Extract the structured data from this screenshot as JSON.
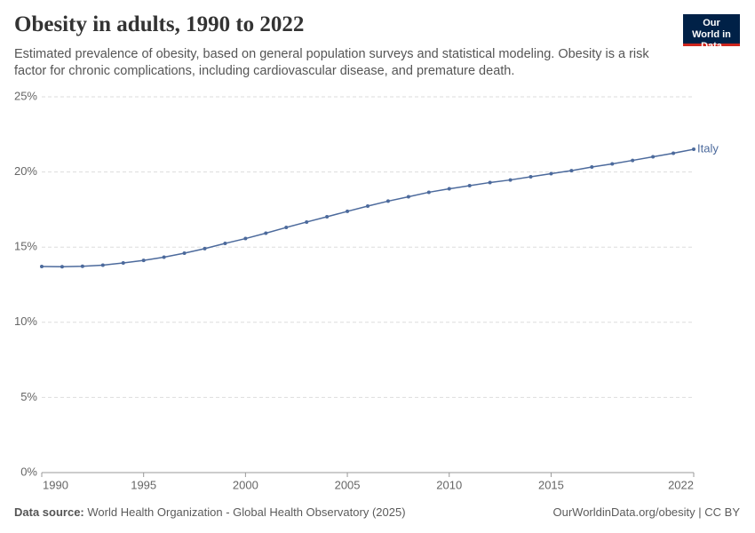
{
  "chart_data": {
    "type": "line",
    "title": "Obesity in adults, 1990 to 2022",
    "subtitle": "Estimated prevalence of obesity, based on general population surveys and statistical modeling. Obesity is a risk factor for chronic complications, including cardiovascular disease, and premature death.",
    "logo": "Our World in Data",
    "source_label": "Data source:",
    "source": "World Health Organization - Global Health Observatory (2025)",
    "footer_right": "OurWorldinData.org/obesity | CC BY",
    "x": [
      1990,
      1991,
      1992,
      1993,
      1994,
      1995,
      1996,
      1997,
      1998,
      1999,
      2000,
      2001,
      2002,
      2003,
      2004,
      2005,
      2006,
      2007,
      2008,
      2009,
      2010,
      2011,
      2012,
      2013,
      2014,
      2015,
      2016,
      2017,
      2018,
      2019,
      2020,
      2021,
      2022
    ],
    "series": [
      {
        "name": "Italy",
        "color": "#4c6a9c",
        "values": [
          13.71,
          13.7,
          13.73,
          13.8,
          13.95,
          14.12,
          14.33,
          14.6,
          14.9,
          15.25,
          15.57,
          15.93,
          16.31,
          16.67,
          17.02,
          17.38,
          17.73,
          18.06,
          18.35,
          18.65,
          18.88,
          19.09,
          19.3,
          19.47,
          19.68,
          19.89,
          20.09,
          20.33,
          20.54,
          20.77,
          21.01,
          21.25,
          21.51
        ]
      }
    ],
    "xlim": [
      1990,
      2022
    ],
    "xticks": [
      1990,
      1995,
      2000,
      2005,
      2010,
      2015,
      2022
    ],
    "ylim": [
      0,
      25
    ],
    "yticks": [
      {
        "value": 0,
        "label": "0%"
      },
      {
        "value": 5,
        "label": "5%"
      },
      {
        "value": 10,
        "label": "10%"
      },
      {
        "value": 15,
        "label": "15%"
      },
      {
        "value": 20,
        "label": "20%"
      },
      {
        "value": 25,
        "label": "25%"
      }
    ],
    "grid": true
  }
}
